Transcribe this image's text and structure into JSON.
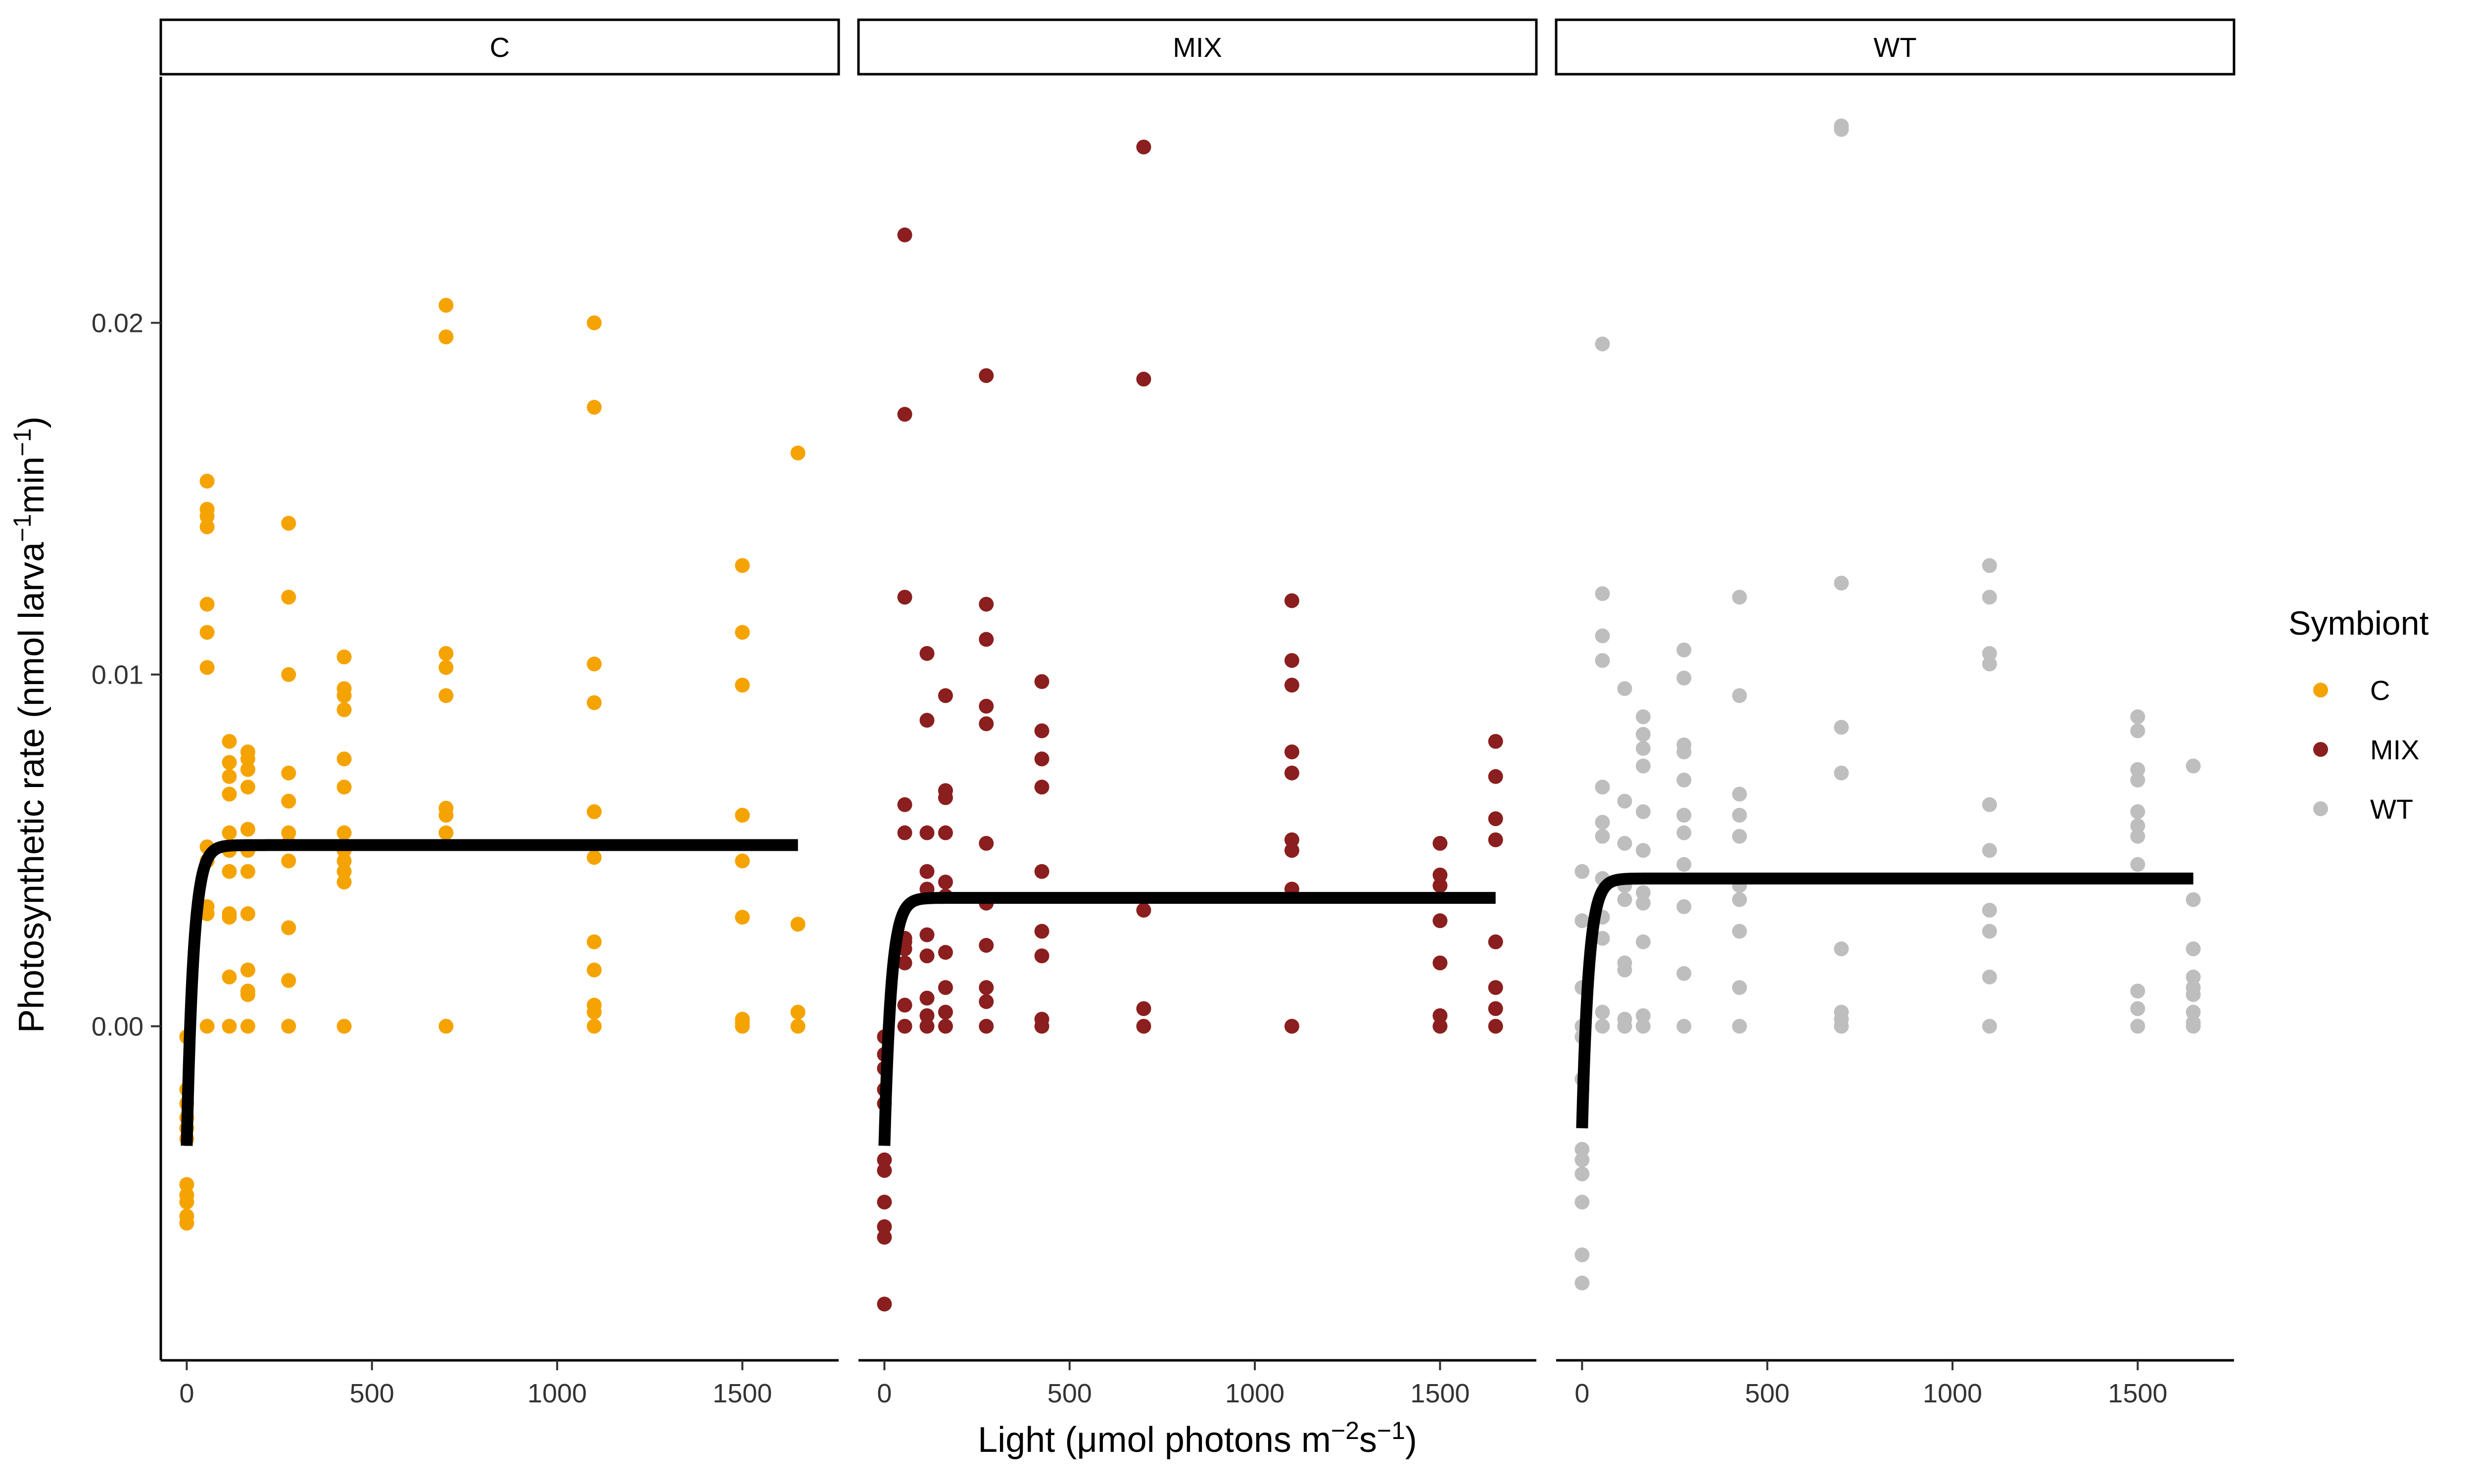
{
  "chart_data": {
    "type": "scatter",
    "ylabel_parts": {
      "base": "Photosynthetic rate (nmol larva",
      "sup1": "−1",
      "mid": "min",
      "sup2": "−1",
      "end": ")"
    },
    "xlabel_parts": {
      "base": "Light (",
      "mu": "μ",
      "mid": "mol photons m",
      "sup1": "−2",
      "mid2": "s",
      "sup2": "−1",
      "end": ")"
    },
    "xlim": [
      -70,
      1760
    ],
    "ylim": [
      -0.0095,
      0.027
    ],
    "x_ticks": [
      0,
      500,
      1000,
      1500
    ],
    "x_tick_labels": [
      "0",
      "500",
      "1000",
      "1500"
    ],
    "y_ticks": [
      0.0,
      0.01,
      0.02
    ],
    "y_tick_labels": [
      "0.00",
      "0.01",
      "0.02"
    ],
    "grid": false,
    "legend": {
      "title": "Symbiont",
      "placement": "right",
      "entries": [
        {
          "label": "C",
          "color": "#F5A300"
        },
        {
          "label": "MIX",
          "color": "#8B1E1E"
        },
        {
          "label": "WT",
          "color": "#BEBEBE"
        }
      ]
    },
    "panels": [
      {
        "label": "C",
        "color": "#F5A300",
        "points": [
          [
            0,
            -0.0003
          ],
          [
            0,
            -0.0018
          ],
          [
            0,
            -0.0022
          ],
          [
            0,
            -0.0026
          ],
          [
            0,
            -0.0029
          ],
          [
            0,
            -0.0032
          ],
          [
            0,
            -0.0045
          ],
          [
            0,
            -0.0048
          ],
          [
            0,
            -0.005
          ],
          [
            0,
            -0.0054
          ],
          [
            0,
            -0.0056
          ],
          [
            55,
            0.0155
          ],
          [
            55,
            0.0147
          ],
          [
            55,
            0.0145
          ],
          [
            55,
            0.0142
          ],
          [
            55,
            0.012
          ],
          [
            55,
            0.0112
          ],
          [
            55,
            0.0102
          ],
          [
            55,
            0.0051
          ],
          [
            55,
            0.0047
          ],
          [
            55,
            0.0034
          ],
          [
            55,
            0.0032
          ],
          [
            55,
            0.0
          ],
          [
            115,
            0.0081
          ],
          [
            115,
            0.0075
          ],
          [
            115,
            0.0071
          ],
          [
            115,
            0.0066
          ],
          [
            115,
            0.0055
          ],
          [
            115,
            0.005
          ],
          [
            115,
            0.0044
          ],
          [
            115,
            0.0032
          ],
          [
            115,
            0.0031
          ],
          [
            115,
            0.0014
          ],
          [
            115,
            0.0
          ],
          [
            165,
            0.0078
          ],
          [
            165,
            0.0076
          ],
          [
            165,
            0.0073
          ],
          [
            165,
            0.0068
          ],
          [
            165,
            0.0056
          ],
          [
            165,
            0.005
          ],
          [
            165,
            0.0044
          ],
          [
            165,
            0.0032
          ],
          [
            165,
            0.0016
          ],
          [
            165,
            0.001
          ],
          [
            165,
            0.0009
          ],
          [
            165,
            0.0
          ],
          [
            275,
            0.0143
          ],
          [
            275,
            0.0122
          ],
          [
            275,
            0.01
          ],
          [
            275,
            0.0072
          ],
          [
            275,
            0.0064
          ],
          [
            275,
            0.0055
          ],
          [
            275,
            0.0052
          ],
          [
            275,
            0.0047
          ],
          [
            275,
            0.0028
          ],
          [
            275,
            0.0013
          ],
          [
            275,
            0.0
          ],
          [
            425,
            0.0105
          ],
          [
            425,
            0.0096
          ],
          [
            425,
            0.0094
          ],
          [
            425,
            0.009
          ],
          [
            425,
            0.0076
          ],
          [
            425,
            0.0068
          ],
          [
            425,
            0.0055
          ],
          [
            425,
            0.005
          ],
          [
            425,
            0.0047
          ],
          [
            425,
            0.0044
          ],
          [
            425,
            0.0041
          ],
          [
            425,
            0.0
          ],
          [
            700,
            0.0205
          ],
          [
            700,
            0.0196
          ],
          [
            700,
            0.0106
          ],
          [
            700,
            0.0102
          ],
          [
            700,
            0.0094
          ],
          [
            700,
            0.0062
          ],
          [
            700,
            0.006
          ],
          [
            700,
            0.0055
          ],
          [
            700,
            0.0
          ],
          [
            1100,
            0.02
          ],
          [
            1100,
            0.0176
          ],
          [
            1100,
            0.0103
          ],
          [
            1100,
            0.0092
          ],
          [
            1100,
            0.0061
          ],
          [
            1100,
            0.0048
          ],
          [
            1100,
            0.0024
          ],
          [
            1100,
            0.0016
          ],
          [
            1100,
            0.0006
          ],
          [
            1100,
            0.0004
          ],
          [
            1100,
            0.0
          ],
          [
            1500,
            0.0131
          ],
          [
            1500,
            0.0112
          ],
          [
            1500,
            0.0097
          ],
          [
            1500,
            0.006
          ],
          [
            1500,
            0.0047
          ],
          [
            1500,
            0.0031
          ],
          [
            1500,
            0.0002
          ],
          [
            1500,
            0.0001
          ],
          [
            1500,
            0.0
          ],
          [
            1650,
            0.0163
          ],
          [
            1650,
            0.0029
          ],
          [
            1650,
            0.0004
          ],
          [
            1650,
            0.0
          ]
        ],
        "curve": {
          "pmax": 0.00515,
          "rd": -0.0034,
          "k": 0.055
        }
      },
      {
        "label": "MIX",
        "color": "#8B1E1E",
        "points": [
          [
            0,
            -0.0003
          ],
          [
            0,
            -0.0008
          ],
          [
            0,
            -0.0012
          ],
          [
            0,
            -0.0018
          ],
          [
            0,
            -0.0022
          ],
          [
            0,
            -0.0038
          ],
          [
            0,
            -0.0041
          ],
          [
            0,
            -0.005
          ],
          [
            0,
            -0.0057
          ],
          [
            0,
            -0.006
          ],
          [
            0,
            -0.0079
          ],
          [
            55,
            0.0225
          ],
          [
            55,
            0.0174
          ],
          [
            55,
            0.0122
          ],
          [
            55,
            0.0063
          ],
          [
            55,
            0.0055
          ],
          [
            55,
            0.0025
          ],
          [
            55,
            0.0024
          ],
          [
            55,
            0.0022
          ],
          [
            55,
            0.0018
          ],
          [
            55,
            0.0006
          ],
          [
            55,
            0.0
          ],
          [
            115,
            0.0106
          ],
          [
            115,
            0.0087
          ],
          [
            115,
            0.0055
          ],
          [
            115,
            0.0044
          ],
          [
            115,
            0.0039
          ],
          [
            115,
            0.0026
          ],
          [
            115,
            0.002
          ],
          [
            115,
            0.0008
          ],
          [
            115,
            0.0003
          ],
          [
            115,
            0.0
          ],
          [
            165,
            0.0094
          ],
          [
            165,
            0.0067
          ],
          [
            165,
            0.0065
          ],
          [
            165,
            0.0055
          ],
          [
            165,
            0.0041
          ],
          [
            165,
            0.0037
          ],
          [
            165,
            0.0021
          ],
          [
            165,
            0.0011
          ],
          [
            165,
            0.0004
          ],
          [
            165,
            0.0
          ],
          [
            275,
            0.0185
          ],
          [
            275,
            0.012
          ],
          [
            275,
            0.011
          ],
          [
            275,
            0.0091
          ],
          [
            275,
            0.0086
          ],
          [
            275,
            0.0052
          ],
          [
            275,
            0.0035
          ],
          [
            275,
            0.0023
          ],
          [
            275,
            0.0011
          ],
          [
            275,
            0.0007
          ],
          [
            275,
            0.0
          ],
          [
            425,
            0.0098
          ],
          [
            425,
            0.0084
          ],
          [
            425,
            0.0076
          ],
          [
            425,
            0.0068
          ],
          [
            425,
            0.0044
          ],
          [
            425,
            0.0027
          ],
          [
            425,
            0.002
          ],
          [
            425,
            0.0002
          ],
          [
            425,
            0.0
          ],
          [
            700,
            0.025
          ],
          [
            700,
            0.0184
          ],
          [
            700,
            0.0033
          ],
          [
            700,
            0.0005
          ],
          [
            700,
            0.0
          ],
          [
            1100,
            0.0121
          ],
          [
            1100,
            0.0104
          ],
          [
            1100,
            0.0097
          ],
          [
            1100,
            0.0078
          ],
          [
            1100,
            0.0072
          ],
          [
            1100,
            0.0053
          ],
          [
            1100,
            0.005
          ],
          [
            1100,
            0.0039
          ],
          [
            1100,
            0.0
          ],
          [
            1500,
            0.0052
          ],
          [
            1500,
            0.0043
          ],
          [
            1500,
            0.004
          ],
          [
            1500,
            0.003
          ],
          [
            1500,
            0.0018
          ],
          [
            1500,
            0.0003
          ],
          [
            1500,
            0.0
          ],
          [
            1650,
            0.0081
          ],
          [
            1650,
            0.0071
          ],
          [
            1650,
            0.0059
          ],
          [
            1650,
            0.0053
          ],
          [
            1650,
            0.0024
          ],
          [
            1650,
            0.0011
          ],
          [
            1650,
            0.0005
          ],
          [
            1650,
            0.0
          ]
        ],
        "curve": {
          "pmax": 0.00365,
          "rd": -0.0034,
          "k": 0.055
        }
      },
      {
        "label": "WT",
        "color": "#BEBEBE",
        "points": [
          [
            0,
            0.0044
          ],
          [
            0,
            0.003
          ],
          [
            0,
            0.0011
          ],
          [
            0,
            0.0
          ],
          [
            0,
            -0.0003
          ],
          [
            0,
            -0.0015
          ],
          [
            0,
            -0.0035
          ],
          [
            0,
            -0.0038
          ],
          [
            0,
            -0.0042
          ],
          [
            0,
            -0.005
          ],
          [
            0,
            -0.0065
          ],
          [
            0,
            -0.0073
          ],
          [
            55,
            0.0194
          ],
          [
            55,
            0.0123
          ],
          [
            55,
            0.0111
          ],
          [
            55,
            0.0104
          ],
          [
            55,
            0.0068
          ],
          [
            55,
            0.0058
          ],
          [
            55,
            0.0054
          ],
          [
            55,
            0.0042
          ],
          [
            55,
            0.0031
          ],
          [
            55,
            0.0025
          ],
          [
            55,
            0.0004
          ],
          [
            55,
            0.0
          ],
          [
            115,
            0.0096
          ],
          [
            115,
            0.0064
          ],
          [
            115,
            0.0052
          ],
          [
            115,
            0.004
          ],
          [
            115,
            0.0036
          ],
          [
            115,
            0.0018
          ],
          [
            115,
            0.0016
          ],
          [
            115,
            0.0002
          ],
          [
            115,
            0.0
          ],
          [
            165,
            0.0088
          ],
          [
            165,
            0.0083
          ],
          [
            165,
            0.0079
          ],
          [
            165,
            0.0074
          ],
          [
            165,
            0.0061
          ],
          [
            165,
            0.005
          ],
          [
            165,
            0.0038
          ],
          [
            165,
            0.0035
          ],
          [
            165,
            0.0024
          ],
          [
            165,
            0.0003
          ],
          [
            165,
            0.0
          ],
          [
            275,
            0.0107
          ],
          [
            275,
            0.0099
          ],
          [
            275,
            0.008
          ],
          [
            275,
            0.0078
          ],
          [
            275,
            0.007
          ],
          [
            275,
            0.006
          ],
          [
            275,
            0.0055
          ],
          [
            275,
            0.0046
          ],
          [
            275,
            0.0034
          ],
          [
            275,
            0.0015
          ],
          [
            275,
            0.0
          ],
          [
            425,
            0.0122
          ],
          [
            425,
            0.0094
          ],
          [
            425,
            0.0066
          ],
          [
            425,
            0.006
          ],
          [
            425,
            0.0054
          ],
          [
            425,
            0.004
          ],
          [
            425,
            0.0036
          ],
          [
            425,
            0.0027
          ],
          [
            425,
            0.0011
          ],
          [
            425,
            0.0
          ],
          [
            700,
            0.0256
          ],
          [
            700,
            0.0255
          ],
          [
            700,
            0.0126
          ],
          [
            700,
            0.0085
          ],
          [
            700,
            0.0072
          ],
          [
            700,
            0.0022
          ],
          [
            700,
            0.0004
          ],
          [
            700,
            0.0002
          ],
          [
            700,
            0.0
          ],
          [
            1100,
            0.0131
          ],
          [
            1100,
            0.0122
          ],
          [
            1100,
            0.0106
          ],
          [
            1100,
            0.0103
          ],
          [
            1100,
            0.0063
          ],
          [
            1100,
            0.005
          ],
          [
            1100,
            0.0033
          ],
          [
            1100,
            0.0027
          ],
          [
            1100,
            0.0014
          ],
          [
            1100,
            0.0
          ],
          [
            1500,
            0.0088
          ],
          [
            1500,
            0.0084
          ],
          [
            1500,
            0.0073
          ],
          [
            1500,
            0.007
          ],
          [
            1500,
            0.0061
          ],
          [
            1500,
            0.0057
          ],
          [
            1500,
            0.0054
          ],
          [
            1500,
            0.0046
          ],
          [
            1500,
            0.001
          ],
          [
            1500,
            0.0005
          ],
          [
            1500,
            0.0
          ],
          [
            1650,
            0.0074
          ],
          [
            1650,
            0.0036
          ],
          [
            1650,
            0.0022
          ],
          [
            1650,
            0.0014
          ],
          [
            1650,
            0.0011
          ],
          [
            1650,
            0.0009
          ],
          [
            1650,
            0.0004
          ],
          [
            1650,
            0.0001
          ],
          [
            1650,
            0.0
          ]
        ],
        "curve": {
          "pmax": 0.0042,
          "rd": -0.0029,
          "k": 0.055
        }
      }
    ]
  }
}
